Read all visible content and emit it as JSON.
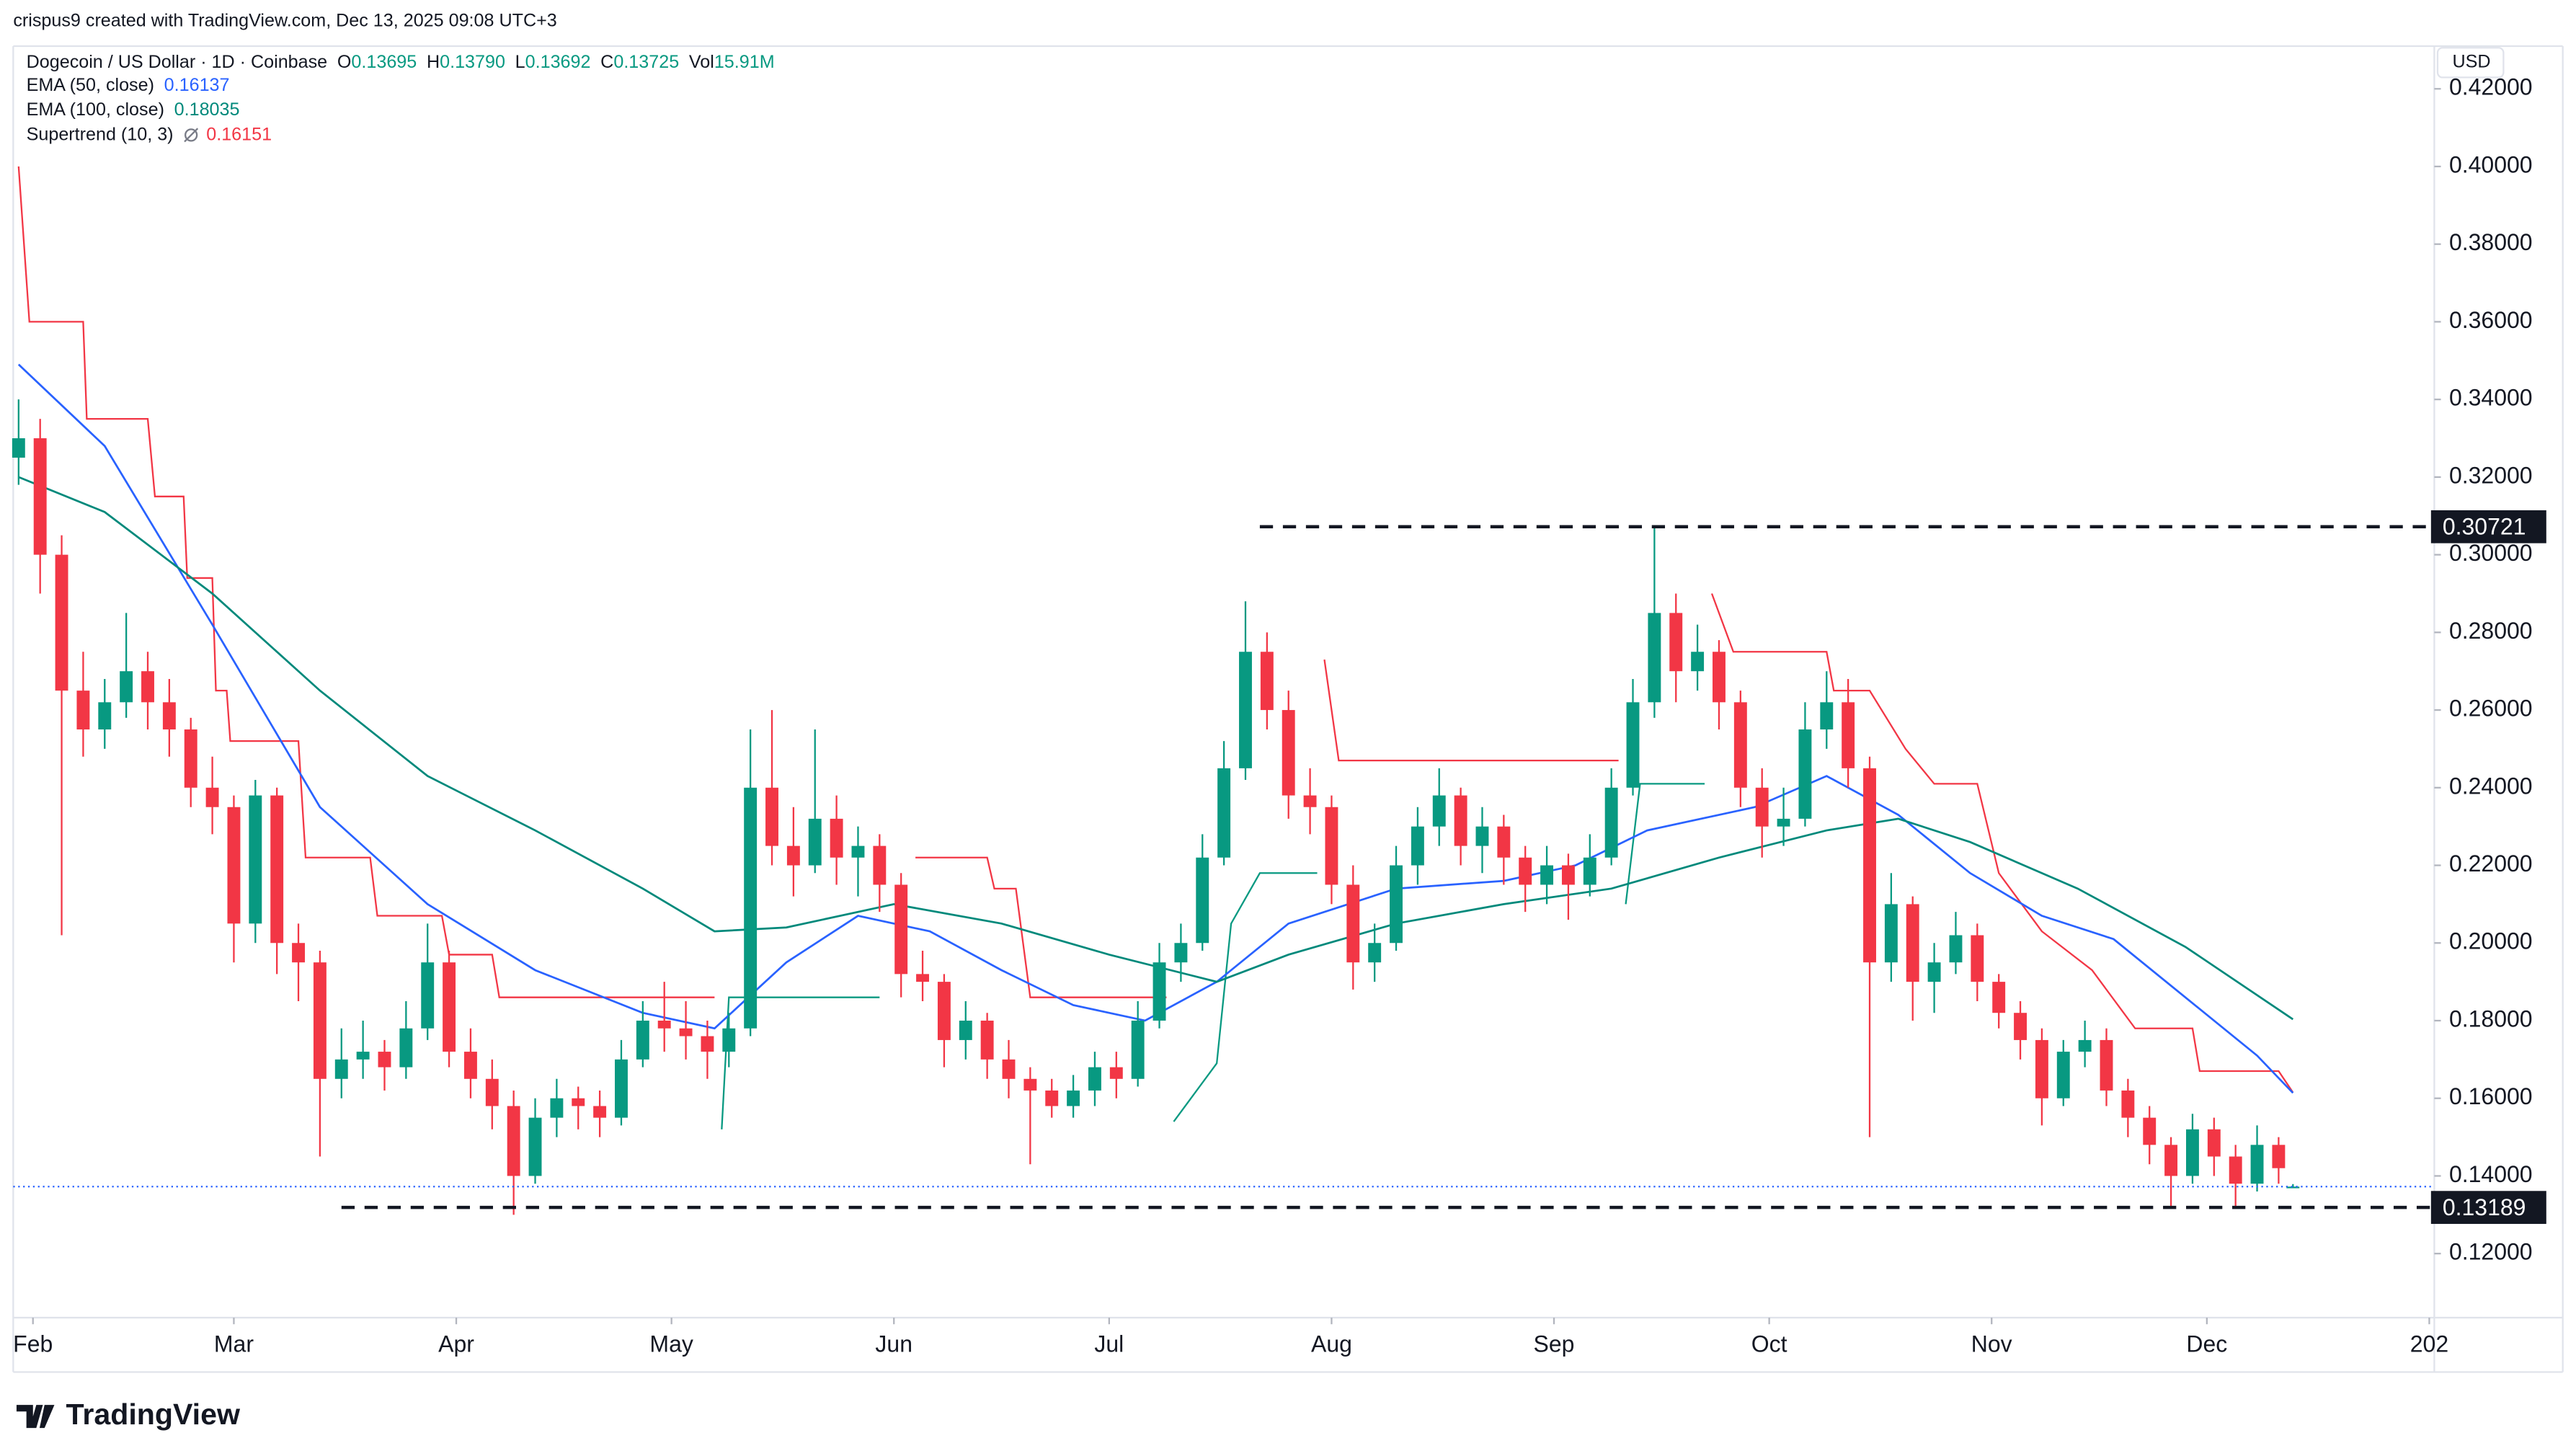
{
  "attribution": "crispus9 created with TradingView.com, Dec 13, 2025 09:08 UTC+3",
  "header": {
    "title": "Dogecoin / US Dollar · 1D · Coinbase",
    "ohlc": [
      {
        "label": "O",
        "value": "0.13695"
      },
      {
        "label": "H",
        "value": "0.13790"
      },
      {
        "label": "L",
        "value": "0.13692"
      },
      {
        "label": "C",
        "value": "0.13725"
      },
      {
        "label": "Vol",
        "value": "15.91M"
      }
    ]
  },
  "currency": "USD",
  "logo": "TradingView",
  "chart_data": {
    "type": "candlestick",
    "up_color": "#089981",
    "down_color": "#f23645",
    "xlim": [
      -2.75,
      334.7
    ],
    "ylim": [
      0.1035,
      0.431
    ],
    "grid": false,
    "xticks": [
      {
        "value": 0,
        "label": "Feb"
      },
      {
        "value": 28,
        "label": "Mar"
      },
      {
        "value": 59,
        "label": "Apr"
      },
      {
        "value": 89,
        "label": "May"
      },
      {
        "value": 120,
        "label": "Jun"
      },
      {
        "value": 150,
        "label": "Jul"
      },
      {
        "value": 181,
        "label": "Aug"
      },
      {
        "value": 212,
        "label": "Sep"
      },
      {
        "value": 242,
        "label": "Oct"
      },
      {
        "value": 273,
        "label": "Nov"
      },
      {
        "value": 303,
        "label": "Dec"
      },
      {
        "value": 334,
        "label": "202"
      }
    ],
    "yticks": [
      {
        "value": 0.12,
        "label": "0.12000"
      },
      {
        "value": 0.14,
        "label": "0.14000"
      },
      {
        "value": 0.16,
        "label": "0.16000"
      },
      {
        "value": 0.18,
        "label": "0.18000"
      },
      {
        "value": 0.2,
        "label": "0.20000"
      },
      {
        "value": 0.22,
        "label": "0.22000"
      },
      {
        "value": 0.24,
        "label": "0.24000"
      },
      {
        "value": 0.26,
        "label": "0.26000"
      },
      {
        "value": 0.28,
        "label": "0.28000"
      },
      {
        "value": 0.3,
        "label": "0.30000"
      },
      {
        "value": 0.32,
        "label": "0.32000"
      },
      {
        "value": 0.34,
        "label": "0.34000"
      },
      {
        "value": 0.36,
        "label": "0.36000"
      },
      {
        "value": 0.38,
        "label": "0.38000"
      },
      {
        "value": 0.4,
        "label": "0.40000"
      },
      {
        "value": 0.42,
        "label": "0.42000"
      }
    ],
    "x": [
      -2,
      1,
      4,
      7,
      10,
      13,
      16,
      19,
      22,
      25,
      28,
      31,
      34,
      37,
      40,
      43,
      46,
      49,
      52,
      55,
      58,
      61,
      64,
      67,
      70,
      73,
      76,
      79,
      82,
      85,
      88,
      91,
      94,
      97,
      100,
      103,
      106,
      109,
      112,
      115,
      118,
      121,
      124,
      127,
      130,
      133,
      136,
      139,
      142,
      145,
      148,
      151,
      154,
      157,
      160,
      163,
      166,
      169,
      172,
      175,
      178,
      181,
      184,
      187,
      190,
      193,
      196,
      199,
      202,
      205,
      208,
      211,
      214,
      217,
      220,
      223,
      226,
      229,
      232,
      235,
      238,
      241,
      244,
      247,
      250,
      253,
      256,
      259,
      262,
      265,
      268,
      271,
      274,
      277,
      280,
      283,
      286,
      289,
      292,
      295,
      298,
      301,
      304,
      307,
      310,
      313,
      315
    ],
    "ohlc": [
      [
        0.325,
        0.34,
        0.318,
        0.33
      ],
      [
        0.33,
        0.335,
        0.29,
        0.3
      ],
      [
        0.3,
        0.305,
        0.202,
        0.265
      ],
      [
        0.265,
        0.275,
        0.248,
        0.255
      ],
      [
        0.255,
        0.268,
        0.25,
        0.262
      ],
      [
        0.262,
        0.285,
        0.258,
        0.27
      ],
      [
        0.27,
        0.275,
        0.255,
        0.262
      ],
      [
        0.262,
        0.268,
        0.248,
        0.255
      ],
      [
        0.255,
        0.258,
        0.235,
        0.24
      ],
      [
        0.24,
        0.248,
        0.228,
        0.235
      ],
      [
        0.235,
        0.238,
        0.195,
        0.205
      ],
      [
        0.205,
        0.242,
        0.2,
        0.238
      ],
      [
        0.238,
        0.24,
        0.192,
        0.2
      ],
      [
        0.2,
        0.205,
        0.185,
        0.195
      ],
      [
        0.195,
        0.198,
        0.145,
        0.165
      ],
      [
        0.165,
        0.178,
        0.16,
        0.17
      ],
      [
        0.17,
        0.18,
        0.165,
        0.172
      ],
      [
        0.172,
        0.175,
        0.162,
        0.168
      ],
      [
        0.168,
        0.185,
        0.165,
        0.178
      ],
      [
        0.178,
        0.205,
        0.175,
        0.195
      ],
      [
        0.195,
        0.198,
        0.168,
        0.172
      ],
      [
        0.172,
        0.178,
        0.16,
        0.165
      ],
      [
        0.165,
        0.17,
        0.152,
        0.158
      ],
      [
        0.158,
        0.162,
        0.13,
        0.14
      ],
      [
        0.14,
        0.16,
        0.138,
        0.155
      ],
      [
        0.155,
        0.165,
        0.15,
        0.16
      ],
      [
        0.16,
        0.163,
        0.152,
        0.158
      ],
      [
        0.158,
        0.162,
        0.15,
        0.155
      ],
      [
        0.155,
        0.175,
        0.153,
        0.17
      ],
      [
        0.17,
        0.185,
        0.168,
        0.18
      ],
      [
        0.18,
        0.19,
        0.172,
        0.178
      ],
      [
        0.178,
        0.185,
        0.17,
        0.176
      ],
      [
        0.176,
        0.18,
        0.165,
        0.172
      ],
      [
        0.172,
        0.182,
        0.168,
        0.178
      ],
      [
        0.178,
        0.255,
        0.176,
        0.24
      ],
      [
        0.24,
        0.26,
        0.22,
        0.225
      ],
      [
        0.225,
        0.235,
        0.212,
        0.22
      ],
      [
        0.22,
        0.255,
        0.218,
        0.232
      ],
      [
        0.232,
        0.238,
        0.215,
        0.222
      ],
      [
        0.222,
        0.23,
        0.212,
        0.225
      ],
      [
        0.225,
        0.228,
        0.208,
        0.215
      ],
      [
        0.215,
        0.218,
        0.186,
        0.192
      ],
      [
        0.192,
        0.198,
        0.185,
        0.19
      ],
      [
        0.19,
        0.192,
        0.168,
        0.175
      ],
      [
        0.175,
        0.185,
        0.17,
        0.18
      ],
      [
        0.18,
        0.182,
        0.165,
        0.17
      ],
      [
        0.17,
        0.175,
        0.16,
        0.165
      ],
      [
        0.165,
        0.168,
        0.143,
        0.162
      ],
      [
        0.162,
        0.165,
        0.155,
        0.158
      ],
      [
        0.158,
        0.166,
        0.155,
        0.162
      ],
      [
        0.162,
        0.172,
        0.158,
        0.168
      ],
      [
        0.168,
        0.172,
        0.16,
        0.165
      ],
      [
        0.165,
        0.185,
        0.163,
        0.18
      ],
      [
        0.18,
        0.2,
        0.178,
        0.195
      ],
      [
        0.195,
        0.205,
        0.19,
        0.2
      ],
      [
        0.2,
        0.228,
        0.198,
        0.222
      ],
      [
        0.222,
        0.252,
        0.22,
        0.245
      ],
      [
        0.245,
        0.288,
        0.242,
        0.275
      ],
      [
        0.275,
        0.28,
        0.255,
        0.26
      ],
      [
        0.26,
        0.265,
        0.232,
        0.238
      ],
      [
        0.238,
        0.245,
        0.228,
        0.235
      ],
      [
        0.235,
        0.238,
        0.21,
        0.215
      ],
      [
        0.215,
        0.22,
        0.188,
        0.195
      ],
      [
        0.195,
        0.205,
        0.19,
        0.2
      ],
      [
        0.2,
        0.225,
        0.198,
        0.22
      ],
      [
        0.22,
        0.235,
        0.215,
        0.23
      ],
      [
        0.23,
        0.245,
        0.225,
        0.238
      ],
      [
        0.238,
        0.24,
        0.22,
        0.225
      ],
      [
        0.225,
        0.235,
        0.218,
        0.23
      ],
      [
        0.23,
        0.233,
        0.215,
        0.222
      ],
      [
        0.222,
        0.225,
        0.208,
        0.215
      ],
      [
        0.215,
        0.225,
        0.21,
        0.22
      ],
      [
        0.22,
        0.223,
        0.206,
        0.215
      ],
      [
        0.215,
        0.228,
        0.212,
        0.222
      ],
      [
        0.222,
        0.245,
        0.22,
        0.24
      ],
      [
        0.24,
        0.268,
        0.238,
        0.262
      ],
      [
        0.262,
        0.30721,
        0.258,
        0.285
      ],
      [
        0.285,
        0.29,
        0.262,
        0.27
      ],
      [
        0.27,
        0.282,
        0.265,
        0.275
      ],
      [
        0.275,
        0.278,
        0.255,
        0.262
      ],
      [
        0.262,
        0.265,
        0.235,
        0.24
      ],
      [
        0.24,
        0.245,
        0.222,
        0.23
      ],
      [
        0.23,
        0.24,
        0.225,
        0.232
      ],
      [
        0.232,
        0.262,
        0.23,
        0.255
      ],
      [
        0.255,
        0.27,
        0.25,
        0.262
      ],
      [
        0.262,
        0.268,
        0.24,
        0.245
      ],
      [
        0.245,
        0.248,
        0.15,
        0.195
      ],
      [
        0.195,
        0.218,
        0.19,
        0.21
      ],
      [
        0.21,
        0.212,
        0.18,
        0.19
      ],
      [
        0.19,
        0.2,
        0.182,
        0.195
      ],
      [
        0.195,
        0.208,
        0.192,
        0.202
      ],
      [
        0.202,
        0.205,
        0.185,
        0.19
      ],
      [
        0.19,
        0.192,
        0.178,
        0.182
      ],
      [
        0.182,
        0.185,
        0.17,
        0.175
      ],
      [
        0.175,
        0.178,
        0.153,
        0.16
      ],
      [
        0.16,
        0.175,
        0.158,
        0.172
      ],
      [
        0.172,
        0.18,
        0.168,
        0.175
      ],
      [
        0.175,
        0.178,
        0.158,
        0.162
      ],
      [
        0.162,
        0.165,
        0.15,
        0.155
      ],
      [
        0.155,
        0.158,
        0.143,
        0.148
      ],
      [
        0.148,
        0.15,
        0.13189,
        0.14
      ],
      [
        0.14,
        0.156,
        0.138,
        0.152
      ],
      [
        0.152,
        0.155,
        0.14,
        0.145
      ],
      [
        0.145,
        0.148,
        0.1319,
        0.138
      ],
      [
        0.138,
        0.153,
        0.136,
        0.148
      ],
      [
        0.148,
        0.15,
        0.138,
        0.142
      ],
      [
        0.13695,
        0.1379,
        0.13692,
        0.13725
      ]
    ],
    "lines": [
      {
        "name": "EMA (50, close)",
        "color": "#2962ff",
        "last": 0.16137,
        "x": [
          -2,
          10,
          25,
          40,
          55,
          70,
          85,
          95,
          105,
          115,
          125,
          135,
          145,
          155,
          165,
          175,
          190,
          205,
          215,
          225,
          240,
          250,
          260,
          270,
          280,
          290,
          300,
          310,
          315
        ],
        "values": [
          0.349,
          0.328,
          0.282,
          0.235,
          0.21,
          0.193,
          0.182,
          0.178,
          0.195,
          0.207,
          0.203,
          0.193,
          0.184,
          0.18,
          0.19,
          0.205,
          0.214,
          0.216,
          0.22,
          0.229,
          0.235,
          0.243,
          0.233,
          0.218,
          0.207,
          0.201,
          0.186,
          0.171,
          0.16137
        ]
      },
      {
        "name": "EMA (100, close)",
        "color": "#00897b",
        "last": 0.18035,
        "x": [
          -2,
          10,
          25,
          40,
          55,
          70,
          85,
          95,
          105,
          120,
          135,
          150,
          165,
          175,
          190,
          205,
          220,
          235,
          250,
          260,
          270,
          285,
          300,
          315
        ],
        "values": [
          0.32,
          0.311,
          0.29,
          0.265,
          0.243,
          0.229,
          0.214,
          0.203,
          0.204,
          0.21,
          0.205,
          0.197,
          0.19,
          0.197,
          0.205,
          0.21,
          0.214,
          0.222,
          0.229,
          0.232,
          0.226,
          0.214,
          0.199,
          0.18035
        ]
      }
    ],
    "supertrend": {
      "name": "Supertrend (10, 3)",
      "color": "#f23645",
      "last": 0.16151,
      "pieces": [
        {
          "color": "#f23645",
          "x": [
            -2,
            -0.5,
            7,
            7.5,
            16,
            17,
            21,
            21.5,
            25,
            25.5,
            27,
            27.5,
            37,
            38,
            47,
            48,
            57,
            58,
            64,
            65,
            95
          ],
          "values": [
            0.4,
            0.36,
            0.36,
            0.335,
            0.335,
            0.315,
            0.315,
            0.294,
            0.294,
            0.265,
            0.265,
            0.252,
            0.252,
            0.222,
            0.222,
            0.207,
            0.207,
            0.197,
            0.197,
            0.186,
            0.186
          ]
        },
        {
          "color": "#089981",
          "x": [
            96,
            97,
            118
          ],
          "values": [
            0.152,
            0.186,
            0.186
          ]
        },
        {
          "color": "#f23645",
          "x": [
            123,
            133,
            134,
            137,
            139,
            158
          ],
          "values": [
            0.222,
            0.222,
            0.214,
            0.214,
            0.186,
            0.186
          ]
        },
        {
          "color": "#089981",
          "x": [
            159,
            165,
            167,
            171,
            179
          ],
          "values": [
            0.154,
            0.169,
            0.205,
            0.218,
            0.218
          ]
        },
        {
          "color": "#f23645",
          "x": [
            180,
            182,
            221
          ],
          "values": [
            0.273,
            0.247,
            0.247
          ]
        },
        {
          "color": "#089981",
          "x": [
            222,
            224,
            233
          ],
          "values": [
            0.21,
            0.241,
            0.241
          ]
        },
        {
          "color": "#f23645",
          "x": [
            234,
            237,
            250,
            251,
            256,
            261,
            265,
            271,
            274,
            280,
            287,
            293,
            301,
            302,
            313,
            315
          ],
          "values": [
            0.29,
            0.275,
            0.275,
            0.265,
            0.265,
            0.25,
            0.241,
            0.241,
            0.218,
            0.203,
            0.193,
            0.178,
            0.178,
            0.167,
            0.167,
            0.16151
          ]
        }
      ]
    },
    "hlines": [
      {
        "value": 0.30721,
        "x0": 171
      },
      {
        "value": 0.13189,
        "x0": 43
      }
    ]
  }
}
